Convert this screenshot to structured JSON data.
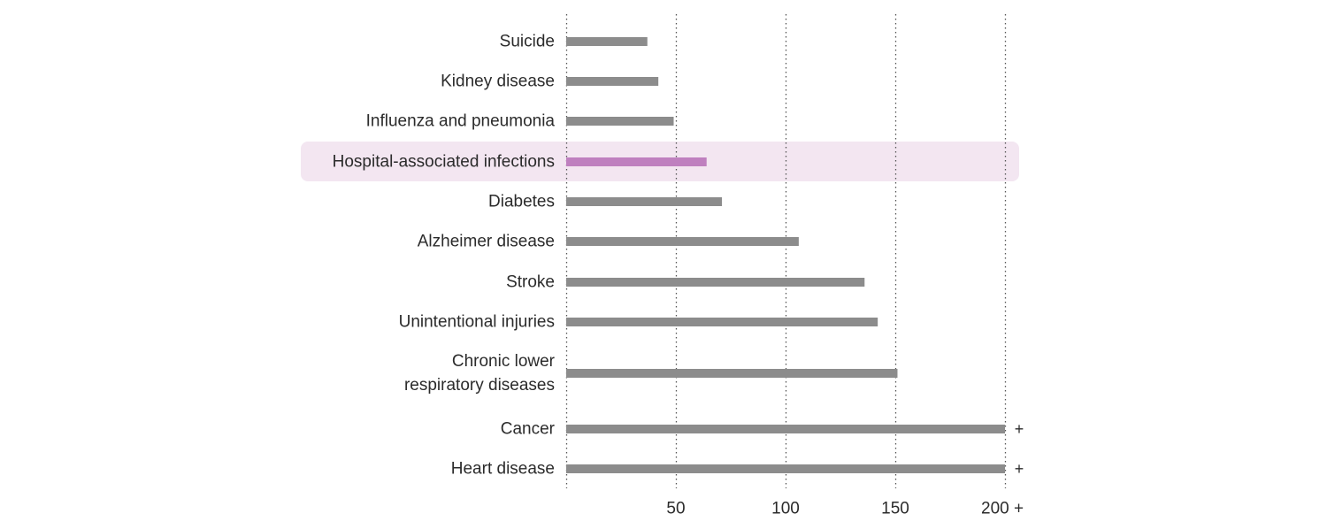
{
  "chart_data": {
    "type": "bar",
    "orientation": "horizontal",
    "categories": [
      "Suicide",
      "Kidney disease",
      "Influenza and pneumonia",
      "Hospital-associated infections",
      "Diabetes",
      "Alzheimer disease",
      "Stroke",
      "Unintentional injuries",
      "Chronic lower respiratory diseases",
      "Cancer",
      "Heart disease"
    ],
    "category_lines": [
      [
        "Suicide"
      ],
      [
        "Kidney disease"
      ],
      [
        "Influenza and pneumonia"
      ],
      [
        "Hospital-associated infections"
      ],
      [
        "Diabetes"
      ],
      [
        "Alzheimer disease"
      ],
      [
        "Stroke"
      ],
      [
        "Unintentional injuries"
      ],
      [
        "Chronic lower",
        "respiratory diseases"
      ],
      [
        "Cancer"
      ],
      [
        "Heart disease"
      ]
    ],
    "values": [
      37,
      42,
      49,
      64,
      71,
      106,
      136,
      142,
      151,
      200,
      200
    ],
    "overflow_marker": "+",
    "overflow": [
      false,
      false,
      false,
      false,
      false,
      false,
      false,
      false,
      false,
      true,
      true
    ],
    "highlight_category": "Hospital-associated infections",
    "xlim": [
      0,
      200
    ],
    "xticks": [
      50,
      100,
      150,
      200
    ],
    "xtick_labels": [
      "50",
      "100",
      "150",
      "200 +"
    ],
    "grid": "vertical-dotted",
    "colors": {
      "bar": "#8c8c8c",
      "highlight_bar": "#bf80bf",
      "highlight_band": "#f3e6f1",
      "grid": "#555555",
      "text": "#2b2b2b"
    }
  }
}
